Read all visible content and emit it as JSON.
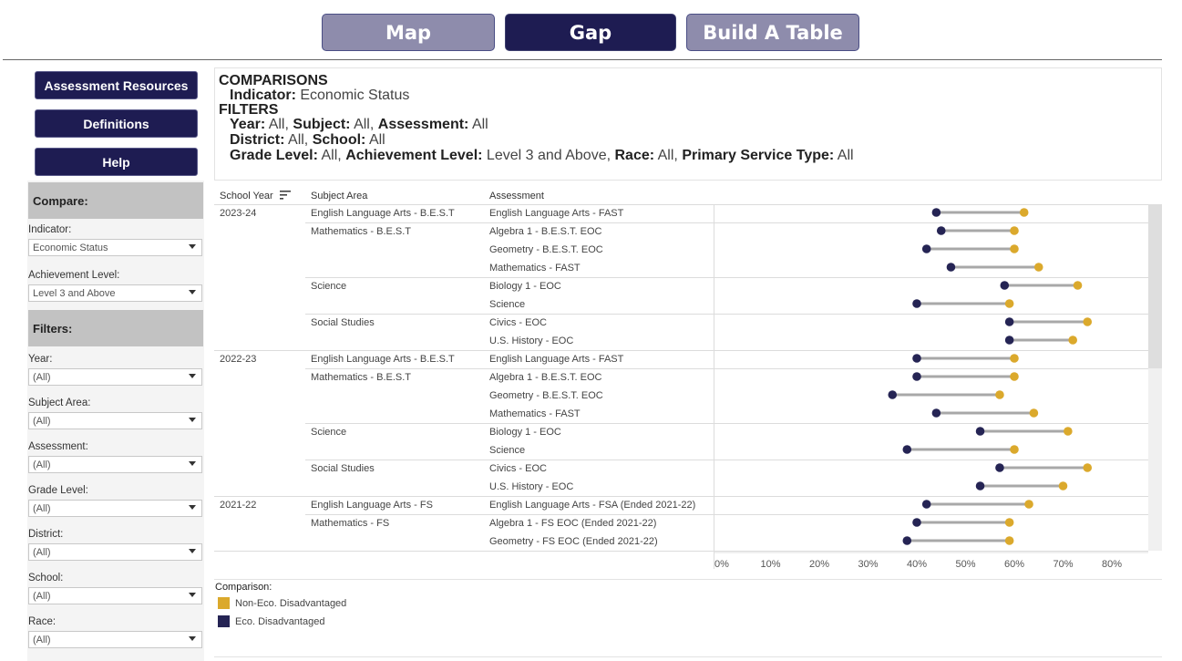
{
  "tabs": [
    {
      "label": "Map",
      "active": false
    },
    {
      "label": "Gap",
      "active": true
    },
    {
      "label": "Build A Table",
      "active": false
    }
  ],
  "side_buttons": [
    "Assessment Resources",
    "Definitions",
    "Help"
  ],
  "compare": {
    "heading": "Compare:",
    "indicator_label": "Indicator:",
    "indicator_value": "Economic Status",
    "achievement_label": "Achievement Level:",
    "achievement_value": "Level 3 and Above"
  },
  "filters": {
    "heading": "Filters:",
    "items": [
      {
        "label": "Year:",
        "value": "(All)"
      },
      {
        "label": "Subject Area:",
        "value": "(All)"
      },
      {
        "label": "Assessment:",
        "value": "(All)"
      },
      {
        "label": "Grade Level:",
        "value": "(All)"
      },
      {
        "label": "District:",
        "value": "(All)"
      },
      {
        "label": "School:",
        "value": "(All)"
      },
      {
        "label": "Race:",
        "value": "(All)"
      }
    ]
  },
  "info": {
    "comparisons_heading": "COMPARISONS",
    "indicator_key": "Indicator:",
    "indicator_val": "Economic Status",
    "filters_heading": "FILTERS",
    "year_key": "Year:",
    "year_val": "All,",
    "subject_key": "Subject:",
    "subject_val": "All,",
    "assessment_key": "Assessment:",
    "assessment_val": "All",
    "district_key": "District:",
    "district_val": "All,",
    "school_key": "School:",
    "school_val": "All",
    "grade_key": "Grade Level:",
    "grade_val": "All,",
    "ach_key": "Achievement Level:",
    "ach_val": "Level 3 and Above,",
    "race_key": "Race:",
    "race_val": "All,",
    "pst_key": "Primary Service Type:",
    "pst_val": "All"
  },
  "table": {
    "col_school_year": "School Year",
    "col_subject": "Subject Area",
    "col_assessment": "Assessment"
  },
  "colors": {
    "non_eco": "#dba92c",
    "eco": "#252454",
    "connector": "#a8a8a8"
  },
  "chart_data": {
    "type": "dumbbell",
    "x_axis_ticks": [
      "0%",
      "10%",
      "20%",
      "30%",
      "40%",
      "50%",
      "60%",
      "70%",
      "80%"
    ],
    "xlim": [
      0,
      85
    ],
    "series_names": [
      "Non-Eco. Disadvantaged",
      "Eco. Disadvantaged"
    ],
    "rows": [
      {
        "year": "2023-24",
        "subject": "English Language Arts - B.E.S.T",
        "assessment": "English Language Arts - FAST",
        "eco": 44,
        "non_eco": 62
      },
      {
        "year": "",
        "subject": "Mathematics - B.E.S.T",
        "assessment": "Algebra 1 - B.E.S.T. EOC",
        "eco": 45,
        "non_eco": 60
      },
      {
        "year": "",
        "subject": "",
        "assessment": "Geometry - B.E.S.T. EOC",
        "eco": 42,
        "non_eco": 60
      },
      {
        "year": "",
        "subject": "",
        "assessment": "Mathematics - FAST",
        "eco": 47,
        "non_eco": 65
      },
      {
        "year": "",
        "subject": "Science",
        "assessment": "Biology 1 - EOC",
        "eco": 58,
        "non_eco": 73
      },
      {
        "year": "",
        "subject": "",
        "assessment": "Science",
        "eco": 40,
        "non_eco": 59
      },
      {
        "year": "",
        "subject": "Social Studies",
        "assessment": "Civics - EOC",
        "eco": 59,
        "non_eco": 75
      },
      {
        "year": "",
        "subject": "",
        "assessment": "U.S. History - EOC",
        "eco": 59,
        "non_eco": 72
      },
      {
        "year": "2022-23",
        "subject": "English Language Arts - B.E.S.T",
        "assessment": "English Language Arts - FAST",
        "eco": 40,
        "non_eco": 60
      },
      {
        "year": "",
        "subject": "Mathematics - B.E.S.T",
        "assessment": "Algebra 1 - B.E.S.T. EOC",
        "eco": 40,
        "non_eco": 60
      },
      {
        "year": "",
        "subject": "",
        "assessment": "Geometry - B.E.S.T. EOC",
        "eco": 35,
        "non_eco": 57
      },
      {
        "year": "",
        "subject": "",
        "assessment": "Mathematics - FAST",
        "eco": 44,
        "non_eco": 64
      },
      {
        "year": "",
        "subject": "Science",
        "assessment": "Biology 1 - EOC",
        "eco": 53,
        "non_eco": 71
      },
      {
        "year": "",
        "subject": "",
        "assessment": "Science",
        "eco": 38,
        "non_eco": 60
      },
      {
        "year": "",
        "subject": "Social Studies",
        "assessment": "Civics - EOC",
        "eco": 57,
        "non_eco": 75
      },
      {
        "year": "",
        "subject": "",
        "assessment": "U.S. History - EOC",
        "eco": 53,
        "non_eco": 70
      },
      {
        "year": "2021-22",
        "subject": "English Language Arts - FS",
        "assessment": "English Language Arts - FSA (Ended 2021-22)",
        "eco": 42,
        "non_eco": 63
      },
      {
        "year": "",
        "subject": "Mathematics - FS",
        "assessment": "Algebra 1 - FS EOC (Ended 2021-22)",
        "eco": 40,
        "non_eco": 59
      },
      {
        "year": "",
        "subject": "",
        "assessment": "Geometry - FS EOC (Ended 2021-22)",
        "eco": 38,
        "non_eco": 59
      }
    ]
  },
  "legend": {
    "title": "Comparison:",
    "items": [
      {
        "label": "Non-Eco. Disadvantaged"
      },
      {
        "label": "Eco. Disadvantaged"
      }
    ]
  }
}
